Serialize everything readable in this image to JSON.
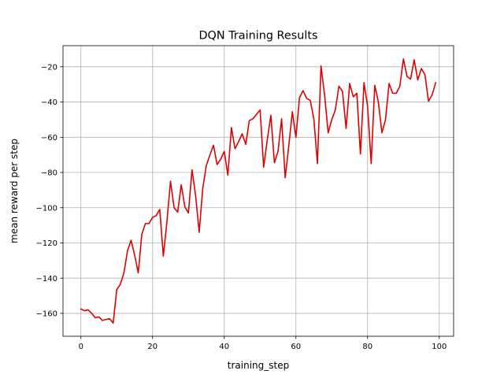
{
  "chart_data": {
    "type": "line",
    "title": "DQN Training Results",
    "xlabel": "training_step",
    "ylabel": "mean reward per step",
    "xlim": [
      -5,
      104
    ],
    "ylim": [
      -173,
      -8
    ],
    "xticks": [
      0,
      20,
      40,
      60,
      80,
      100
    ],
    "yticks": [
      -160,
      -140,
      -120,
      -100,
      -80,
      -60,
      -40,
      -20
    ],
    "xtick_labels": [
      "0",
      "20",
      "40",
      "60",
      "80",
      "100"
    ],
    "ytick_labels": [
      "−160",
      "−140",
      "−120",
      "−100",
      "−80",
      "−60",
      "−40",
      "−20"
    ],
    "grid": true,
    "legend": "none",
    "series": [
      {
        "color": "#e00000",
        "x": [
          0,
          1,
          2,
          3,
          4,
          5,
          6,
          7,
          8,
          9,
          10,
          11,
          12,
          13,
          14,
          15,
          16,
          17,
          18,
          19,
          20,
          21,
          22,
          23,
          24,
          25,
          26,
          27,
          28,
          29,
          30,
          31,
          32,
          33,
          34,
          35,
          36,
          37,
          38,
          39,
          40,
          41,
          42,
          43,
          44,
          45,
          46,
          47,
          48,
          49,
          50,
          51,
          52,
          53,
          54,
          55,
          56,
          57,
          58,
          59,
          60,
          61,
          62,
          63,
          64,
          65,
          66,
          67,
          68,
          69,
          70,
          71,
          72,
          73,
          74,
          75,
          76,
          77,
          78,
          79,
          80,
          81,
          82,
          83,
          84,
          85,
          86,
          87,
          88,
          89,
          90,
          91,
          92,
          93,
          94,
          95,
          96,
          97,
          98,
          99
        ],
        "y": [
          -157.5,
          -158.5,
          -158,
          -160,
          -162.5,
          -162,
          -164,
          -163.5,
          -163,
          -165.5,
          -146.5,
          -143.5,
          -137,
          -124.5,
          -118.5,
          -127,
          -137,
          -115,
          -109,
          -109,
          -105.5,
          -104.5,
          -101,
          -127.5,
          -108,
          -85,
          -100,
          -102.5,
          -87,
          -99.5,
          -103,
          -78.5,
          -93,
          -114,
          -89,
          -76,
          -70,
          -64.5,
          -75.5,
          -72.5,
          -68,
          -81.5,
          -54.5,
          -66.5,
          -62.5,
          -58,
          -64,
          -50.5,
          -49.5,
          -47,
          -44.5,
          -77,
          -61.5,
          -47.5,
          -74.5,
          -68,
          -49.5,
          -83,
          -65,
          -45.5,
          -60,
          -37.5,
          -33.5,
          -38,
          -39,
          -49.5,
          -75,
          -19.5,
          -36,
          -57.5,
          -50,
          -44.5,
          -31,
          -34,
          -55,
          -29.5,
          -37,
          -35,
          -69.5,
          -29,
          -42.5,
          -75,
          -30.5,
          -40,
          -57.5,
          -50,
          -29.5,
          -35,
          -35,
          -31,
          -15.5,
          -25.5,
          -27,
          -16,
          -27.5,
          -21,
          -24.5,
          -39.5,
          -36,
          -29
        ]
      }
    ]
  }
}
